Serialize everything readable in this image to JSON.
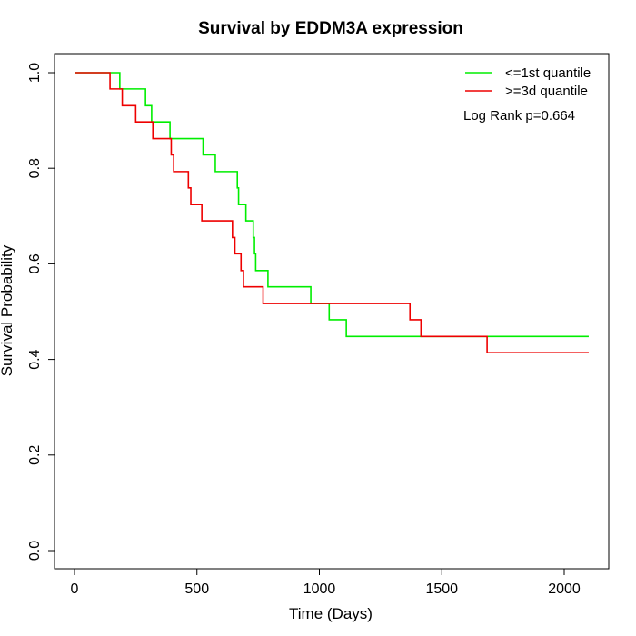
{
  "chart_data": {
    "type": "line",
    "title": "Survival by EDDM3A expression",
    "xlabel": "Time (Days)",
    "ylabel": "Survival Probability",
    "xlim": [
      0,
      2100
    ],
    "ylim": [
      0,
      1
    ],
    "x_ticks": [
      0,
      500,
      1000,
      1500,
      2000
    ],
    "y_ticks": [
      0.0,
      0.2,
      0.4,
      0.6,
      0.8,
      1.0
    ],
    "x_tick_labels": [
      "0",
      "500",
      "1000",
      "1500",
      "2000"
    ],
    "y_tick_labels": [
      "0.0",
      "0.2",
      "0.4",
      "0.6",
      "0.8",
      "1.0"
    ],
    "grid": false,
    "legend_position": "top-right",
    "annotation": "Log Rank p=0.664",
    "series": [
      {
        "name": "<=1st quantile",
        "color": "#00ee00",
        "step": true,
        "x": [
          0,
          185,
          290,
          315,
          390,
          525,
          575,
          665,
          670,
          680,
          700,
          730,
          735,
          740,
          790,
          965,
          1040,
          1110,
          1420,
          2100
        ],
        "y": [
          1.0,
          0.966,
          0.931,
          0.897,
          0.862,
          0.828,
          0.793,
          0.759,
          0.724,
          0.724,
          0.69,
          0.655,
          0.621,
          0.586,
          0.552,
          0.517,
          0.483,
          0.448,
          0.448,
          0.448
        ]
      },
      {
        "name": ">=3d quantile",
        "color": "#ee0000",
        "step": true,
        "x": [
          0,
          145,
          195,
          250,
          320,
          395,
          405,
          465,
          475,
          520,
          645,
          655,
          680,
          690,
          770,
          1370,
          1415,
          1685,
          2100
        ],
        "y": [
          1.0,
          0.966,
          0.931,
          0.897,
          0.862,
          0.828,
          0.793,
          0.759,
          0.724,
          0.69,
          0.655,
          0.621,
          0.586,
          0.552,
          0.517,
          0.483,
          0.448,
          0.414,
          0.414
        ]
      }
    ]
  }
}
